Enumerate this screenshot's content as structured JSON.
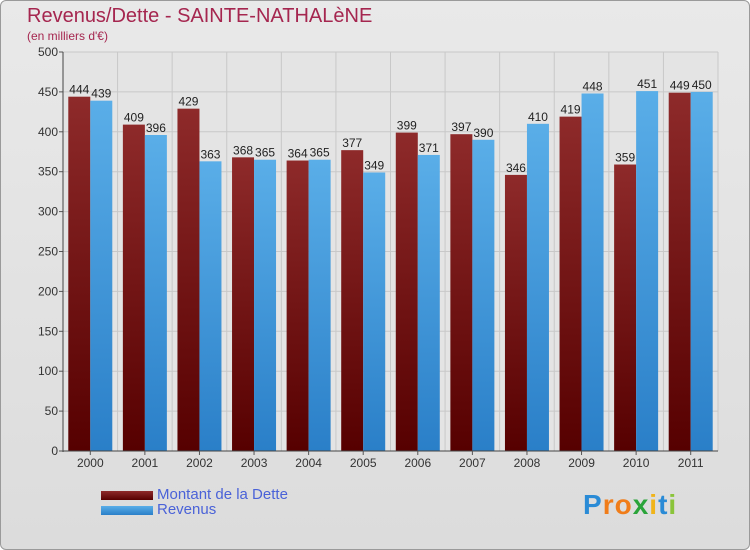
{
  "title": "Revenus/Dette - SAINTE-NATHALèNE",
  "subtitle": "(en milliers d'€)",
  "colors": {
    "dette": "#6b0c0c",
    "revenus": "#3a96dc",
    "axis_text": "#333333",
    "title": "#a5264f",
    "legend_text": "#4a62d8"
  },
  "logo": {
    "text": "Proxiti",
    "letters": [
      "P",
      "r",
      "o",
      "x",
      "i",
      "t",
      "i"
    ],
    "colors": [
      "#2a8bd6",
      "#f07d1a",
      "#f07d1a",
      "#2aa43a",
      "#f0b41a",
      "#2a8bd6",
      "#8ac43a"
    ]
  },
  "legend": [
    {
      "label": "Montant de la Dette",
      "series": "dette"
    },
    {
      "label": "Revenus",
      "series": "revenus"
    }
  ],
  "chart_data": {
    "type": "bar",
    "title": "Revenus/Dette - SAINTE-NATHALèNE",
    "subtitle": "(en milliers d'€)",
    "categories": [
      "2000",
      "2001",
      "2002",
      "2003",
      "2004",
      "2005",
      "2006",
      "2007",
      "2008",
      "2009",
      "2010",
      "2011"
    ],
    "series": [
      {
        "name": "Montant de la Dette",
        "key": "dette",
        "values": [
          444,
          409,
          429,
          368,
          364,
          377,
          399,
          397,
          346,
          419,
          359,
          449
        ]
      },
      {
        "name": "Revenus",
        "key": "revenus",
        "values": [
          439,
          396,
          363,
          365,
          365,
          349,
          371,
          390,
          410,
          448,
          451,
          450
        ]
      }
    ],
    "ylim": [
      0,
      500
    ],
    "yticks": [
      0,
      50,
      100,
      150,
      200,
      250,
      300,
      350,
      400,
      450,
      500
    ],
    "grid": true,
    "legend_position": "bottom-left",
    "data_labels": true
  }
}
